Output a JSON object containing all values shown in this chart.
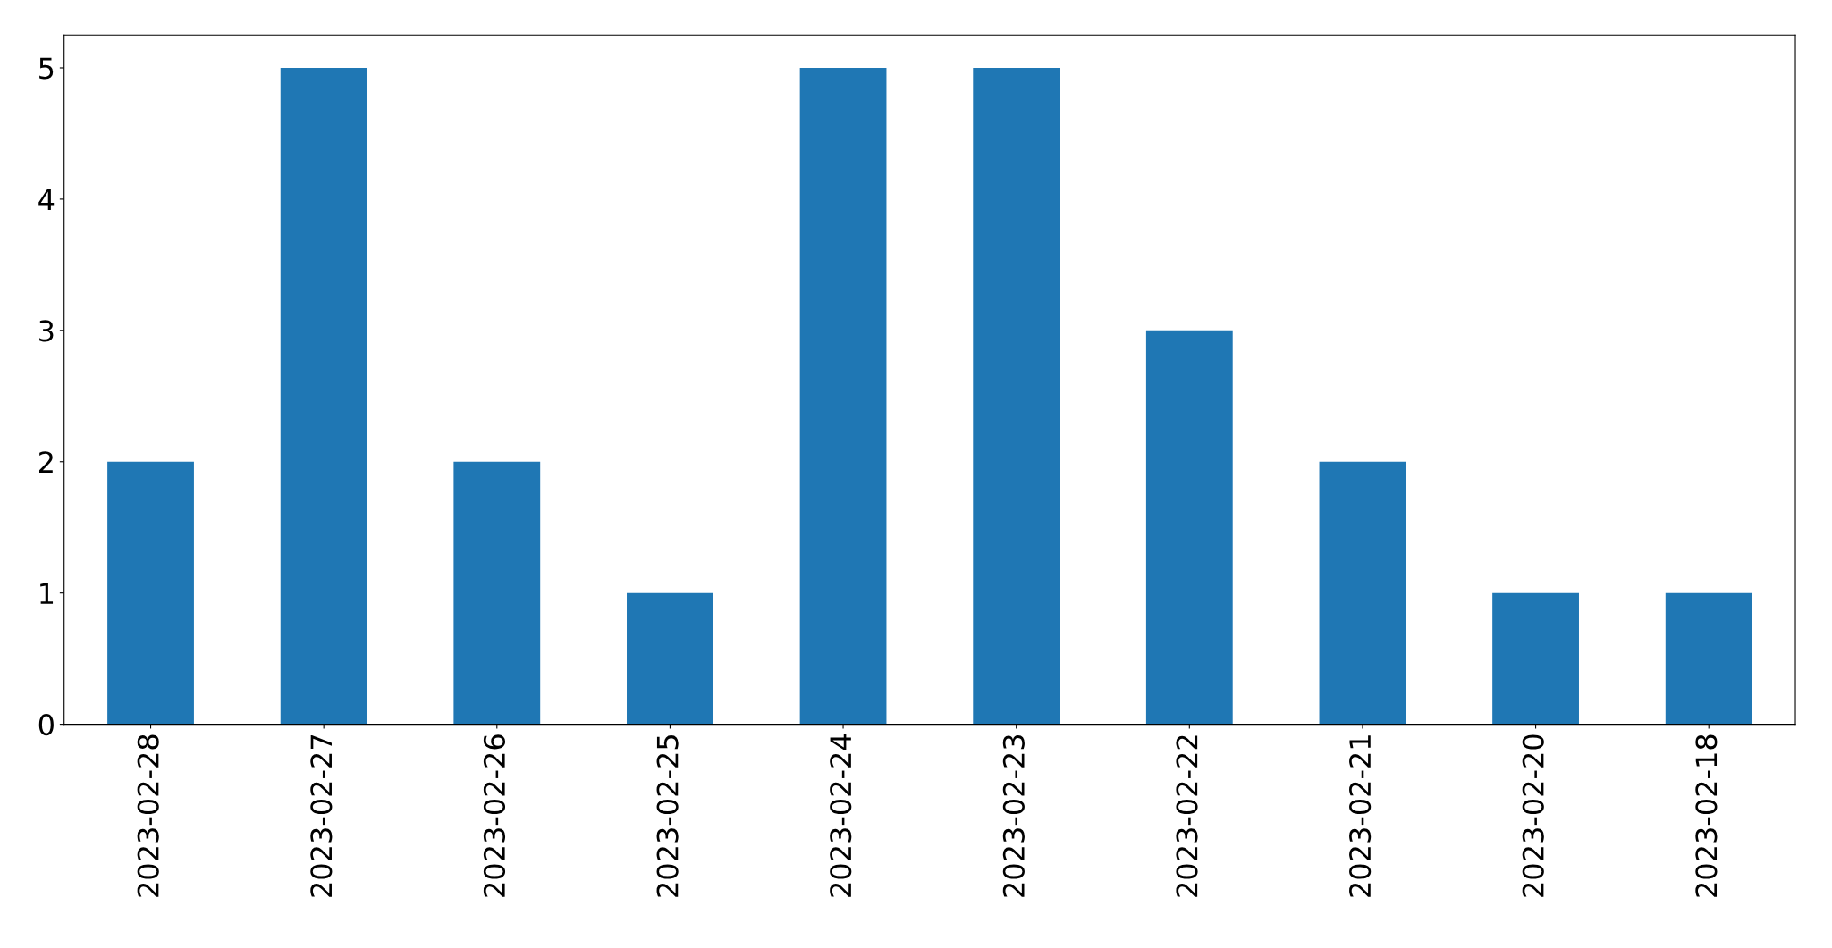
{
  "chart_data": {
    "type": "bar",
    "categories": [
      "2023-02-28",
      "2023-02-27",
      "2023-02-26",
      "2023-02-25",
      "2023-02-24",
      "2023-02-23",
      "2023-02-22",
      "2023-02-21",
      "2023-02-20",
      "2023-02-18"
    ],
    "values": [
      2,
      5,
      2,
      1,
      5,
      5,
      3,
      2,
      1,
      1
    ],
    "color": "#1f77b4",
    "ylim": [
      0,
      5.25
    ],
    "yticks": [
      0,
      1,
      2,
      3,
      4,
      5
    ],
    "grid": false,
    "legend": false
  }
}
